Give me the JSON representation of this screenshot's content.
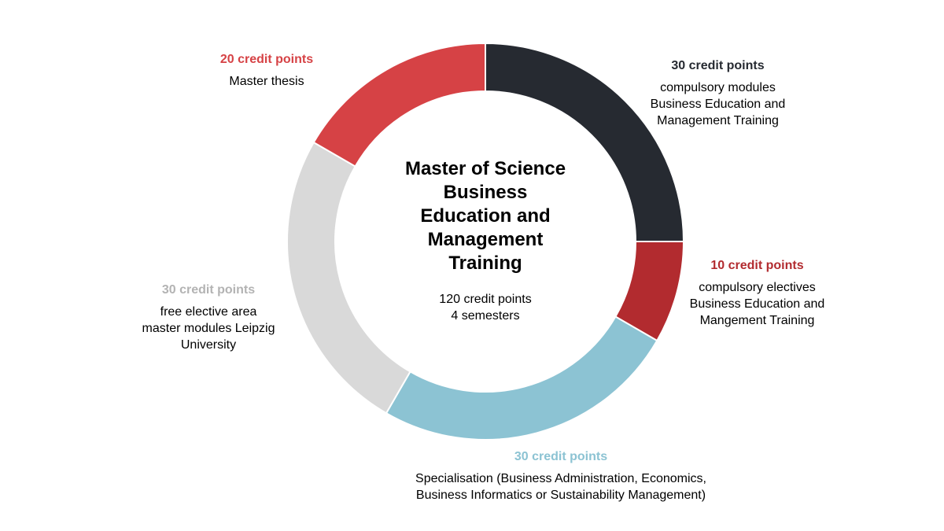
{
  "chart_data": {
    "type": "pie",
    "donut": true,
    "center": {
      "title_lines": [
        "Master of Science",
        "Business",
        "Education and",
        "Management",
        "Training"
      ],
      "sub_lines": [
        "120 credit points",
        "4 semesters"
      ]
    },
    "slices": [
      {
        "value": 30,
        "points_label": "30 credit points",
        "desc_lines": [
          "compulsory modules",
          "Business Education and",
          "Management Training"
        ],
        "color": "#262a31",
        "label_color": "#262a31"
      },
      {
        "value": 10,
        "points_label": "10 credit points",
        "desc_lines": [
          "compulsory electives",
          "Business Education and",
          "Mangement Training"
        ],
        "color": "#b22b2f",
        "label_color": "#b22b2f"
      },
      {
        "value": 30,
        "points_label": "30 credit points",
        "desc_lines": [
          "Specialisation (Business Administration, Economics,",
          "Business Informatics or Sustainability Management)"
        ],
        "color": "#8cc3d3",
        "label_color": "#8cc3d3"
      },
      {
        "value": 30,
        "points_label": "30 credit points",
        "desc_lines": [
          "free elective area",
          "master modules Leipzig",
          "University"
        ],
        "color": "#d9d9d9",
        "label_color": "#b3b3b3"
      },
      {
        "value": 20,
        "points_label": "20 credit points",
        "desc_lines": [
          "Master thesis"
        ],
        "color": "#d64245",
        "label_color": "#d64245"
      }
    ]
  }
}
